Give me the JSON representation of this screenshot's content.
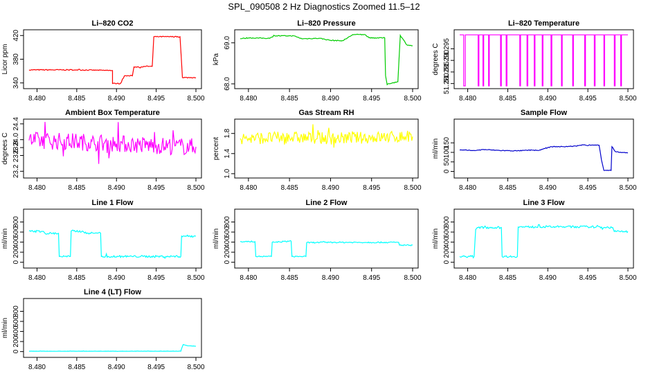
{
  "page": {
    "title": "SPL_090508  2 Hz Diagnostics Zoomed 11.5–12"
  },
  "chart_data": [
    {
      "type": "line",
      "title": "Li–820 CO2",
      "ylabel": "Licor ppm",
      "color": "#ff0000",
      "xlim": [
        8.479,
        8.5
      ],
      "ylim": [
        335,
        425
      ],
      "yticks": [
        340,
        380,
        420
      ],
      "xticks": [
        "8.480",
        "8.485",
        "8.490",
        "8.495",
        "8.500"
      ],
      "noise": 0.8,
      "series": [
        {
          "x": [
            8.479,
            8.485,
            8.4895,
            8.4895,
            8.4905,
            8.491,
            8.492,
            8.4922,
            8.4932,
            8.4937,
            8.4945,
            8.4947,
            8.4963,
            8.498,
            8.4983,
            8.5
          ],
          "y": [
            362,
            362,
            361,
            339,
            339,
            352,
            352,
            367,
            367,
            368,
            368,
            418,
            418,
            418,
            349,
            349
          ]
        }
      ]
    },
    {
      "type": "line",
      "title": "Li–820 Pressure",
      "ylabel": "kPa",
      "color": "#00cc00",
      "xlim": [
        8.479,
        8.5
      ],
      "ylim": [
        67.95,
        69.25
      ],
      "yticks": [
        "68.0",
        "69.0"
      ],
      "xticks": [
        "8.480",
        "8.485",
        "8.490",
        "8.495",
        "8.500"
      ],
      "noise": 0.01,
      "series": [
        {
          "x": [
            8.479,
            8.48,
            8.4826,
            8.4832,
            8.4855,
            8.4865,
            8.4887,
            8.49,
            8.4915,
            8.4927,
            8.4942,
            8.4947,
            8.4966,
            8.4967,
            8.4969,
            8.497,
            8.4982,
            8.4985,
            8.4993,
            8.5
          ],
          "y": [
            69.1,
            69.12,
            69.11,
            69.17,
            69.17,
            69.1,
            69.11,
            69.06,
            69.05,
            69.2,
            69.2,
            69.12,
            69.12,
            68.2,
            67.98,
            68.0,
            68.05,
            69.18,
            68.95,
            68.93
          ]
        }
      ]
    },
    {
      "type": "line",
      "title": "Li–820 Temperature",
      "ylabel": "degrees C",
      "color": "#ff00ff",
      "xlim": [
        8.479,
        8.5
      ],
      "ylim": [
        51.279,
        51.302
      ],
      "yticks": [
        "51.280",
        "51.285",
        "51.290",
        "51.295"
      ],
      "xticks": [
        "8.480",
        "8.485",
        "8.490",
        "8.495",
        "8.500"
      ],
      "noise": 0,
      "series": [
        {
          "x": [
            8.479,
            8.4795,
            8.4795,
            8.4797,
            8.4797,
            8.4813,
            8.4813,
            8.4814,
            8.4814,
            8.4819,
            8.4819,
            8.482,
            8.482,
            8.4826,
            8.4826,
            8.4827,
            8.4827,
            8.4841,
            8.4841,
            8.4842,
            8.4842,
            8.4848,
            8.4848,
            8.4849,
            8.4849,
            8.4865,
            8.4865,
            8.4866,
            8.4866,
            8.4874,
            8.4874,
            8.4875,
            8.4875,
            8.4883,
            8.4883,
            8.4884,
            8.4884,
            8.4893,
            8.4893,
            8.4894,
            8.4894,
            8.4904,
            8.4904,
            8.4905,
            8.4905,
            8.4917,
            8.4917,
            8.4918,
            8.4918,
            8.4931,
            8.4931,
            8.4932,
            8.4932,
            8.4946,
            8.4946,
            8.4947,
            8.4947,
            8.4958,
            8.4958,
            8.4959,
            8.4959,
            8.497,
            8.497,
            8.4971,
            8.4971,
            8.4983,
            8.4983,
            8.4984,
            8.4984,
            8.4991,
            8.4991,
            8.4992,
            8.4992,
            8.5
          ],
          "y": [
            51.301,
            51.301,
            51.279,
            51.279,
            51.301,
            51.301,
            51.279,
            51.279,
            51.301,
            51.301,
            51.279,
            51.279,
            51.301,
            51.301,
            51.279,
            51.279,
            51.301,
            51.301,
            51.279,
            51.279,
            51.301,
            51.301,
            51.279,
            51.279,
            51.301,
            51.301,
            51.279,
            51.279,
            51.301,
            51.301,
            51.279,
            51.279,
            51.301,
            51.301,
            51.279,
            51.279,
            51.301,
            51.301,
            51.279,
            51.279,
            51.301,
            51.301,
            51.279,
            51.279,
            51.301,
            51.301,
            51.279,
            51.279,
            51.301,
            51.301,
            51.279,
            51.279,
            51.301,
            51.301,
            51.279,
            51.279,
            51.301,
            51.301,
            51.279,
            51.279,
            51.301,
            51.301,
            51.279,
            51.279,
            51.301,
            51.301,
            51.279,
            51.279,
            51.301,
            51.301,
            51.279,
            51.279,
            51.301,
            51.301
          ]
        }
      ]
    },
    {
      "type": "line",
      "title": "Ambient Box Temperature",
      "ylabel": "degrees C",
      "color": "#ff00ff",
      "xlim": [
        8.479,
        8.5
      ],
      "ylim": [
        23.1,
        24.45
      ],
      "yticks": [
        "23.2",
        "23.6",
        "23.8",
        "24.0",
        "24.4"
      ],
      "xticks": [
        "8.480",
        "8.485",
        "8.490",
        "8.495",
        "8.500"
      ],
      "noise": 0.22,
      "series": [
        {
          "x": [
            8.479,
            8.485,
            8.49,
            8.495,
            8.5
          ],
          "y": [
            23.98,
            23.95,
            23.9,
            23.85,
            23.82
          ]
        }
      ]
    },
    {
      "type": "line",
      "title": "Gas Stream RH",
      "ylabel": "percent",
      "color": "#ffff00",
      "xlim": [
        8.479,
        8.5
      ],
      "ylim": [
        0.97,
        2.03
      ],
      "yticks": [
        "1.0",
        "1.4",
        "1.8"
      ],
      "xticks": [
        "8.480",
        "8.485",
        "8.490",
        "8.495",
        "8.500"
      ],
      "noise": 0.12,
      "series": [
        {
          "x": [
            8.479,
            8.485,
            8.49,
            8.495,
            8.5
          ],
          "y": [
            1.7,
            1.72,
            1.7,
            1.72,
            1.74
          ]
        }
      ]
    },
    {
      "type": "line",
      "title": "Sample Flow",
      "ylabel": "ml/min",
      "color": "#0000cc",
      "xlim": [
        8.479,
        8.5
      ],
      "ylim": [
        -20,
        260
      ],
      "yticks": [
        0,
        50,
        100,
        150
      ],
      "xticks": [
        "8.480",
        "8.485",
        "8.490",
        "8.495",
        "8.500"
      ],
      "noise": 2,
      "series": [
        {
          "x": [
            8.479,
            8.481,
            8.482,
            8.484,
            8.4862,
            8.488,
            8.4888,
            8.4905,
            8.492,
            8.4935,
            8.4945,
            8.495,
            8.4952,
            8.4964,
            8.4967,
            8.497,
            8.4979,
            8.498,
            8.4984,
            8.499,
            8.5
          ],
          "y": [
            112,
            110,
            115,
            110,
            108,
            112,
            110,
            130,
            130,
            133,
            140,
            135,
            140,
            138,
            60,
            5,
            5,
            130,
            105,
            100,
            97
          ]
        }
      ]
    },
    {
      "type": "line",
      "title": "Line 1 Flow",
      "ylabel": "ml/min",
      "color": "#00ffff",
      "xlim": [
        8.479,
        8.5
      ],
      "ylim": [
        -60,
        1000
      ],
      "yticks": [
        0,
        200,
        400,
        600,
        800
      ],
      "xticks": [
        "8.480",
        "8.485",
        "8.490",
        "8.495",
        "8.500"
      ],
      "noise": 20,
      "series": [
        {
          "x": [
            8.479,
            8.4808,
            8.481,
            8.4827,
            8.4828,
            8.4842,
            8.4843,
            8.4858,
            8.486,
            8.4875,
            8.4877,
            8.488,
            8.4881,
            8.4981,
            8.4982,
            8.5
          ],
          "y": [
            620,
            615,
            575,
            575,
            115,
            115,
            620,
            615,
            580,
            580,
            580,
            580,
            115,
            115,
            520,
            520
          ]
        }
      ]
    },
    {
      "type": "line",
      "title": "Line 2 Flow",
      "ylabel": "ml/min",
      "color": "#00ffff",
      "xlim": [
        8.479,
        8.5
      ],
      "ylim": [
        -60,
        1000
      ],
      "yticks": [
        0,
        200,
        400,
        600,
        800
      ],
      "xticks": [
        "8.480",
        "8.485",
        "8.490",
        "8.495",
        "8.500"
      ],
      "noise": 12,
      "series": [
        {
          "x": [
            8.479,
            8.4808,
            8.4809,
            8.4828,
            8.4829,
            8.4852,
            8.4853,
            8.487,
            8.4871,
            8.4898,
            8.4983,
            8.4984,
            8.5
          ],
          "y": [
            410,
            410,
            115,
            115,
            395,
            420,
            115,
            115,
            390,
            395,
            395,
            340,
            340
          ]
        }
      ]
    },
    {
      "type": "line",
      "title": "Line 3 Flow",
      "ylabel": "ml/min",
      "color": "#00ffff",
      "xlim": [
        8.479,
        8.5
      ],
      "ylim": [
        -60,
        1000
      ],
      "yticks": [
        0,
        200,
        400,
        600,
        800
      ],
      "xticks": [
        "8.480",
        "8.485",
        "8.490",
        "8.495",
        "8.500"
      ],
      "noise": 20,
      "series": [
        {
          "x": [
            8.479,
            8.4808,
            8.4809,
            8.481,
            8.4812,
            8.4842,
            8.4843,
            8.4862,
            8.4863,
            8.49,
            8.495,
            8.4981,
            8.4983,
            8.5
          ],
          "y": [
            115,
            115,
            400,
            650,
            690,
            690,
            115,
            115,
            700,
            705,
            705,
            690,
            610,
            610
          ]
        }
      ]
    },
    {
      "type": "line",
      "title": "Line 4 (LT) Flow",
      "ylabel": "ml/min",
      "color": "#00ffff",
      "xlim": [
        8.479,
        8.5
      ],
      "ylim": [
        -60,
        1000
      ],
      "yticks": [
        0,
        200,
        400,
        600,
        800
      ],
      "xticks": [
        "8.480",
        "8.485",
        "8.490",
        "8.495",
        "8.500"
      ],
      "noise": 2,
      "series": [
        {
          "x": [
            8.479,
            8.4981,
            8.4982,
            8.4984,
            8.499,
            8.5
          ],
          "y": [
            8,
            8,
            60,
            140,
            115,
            108
          ]
        }
      ]
    }
  ]
}
